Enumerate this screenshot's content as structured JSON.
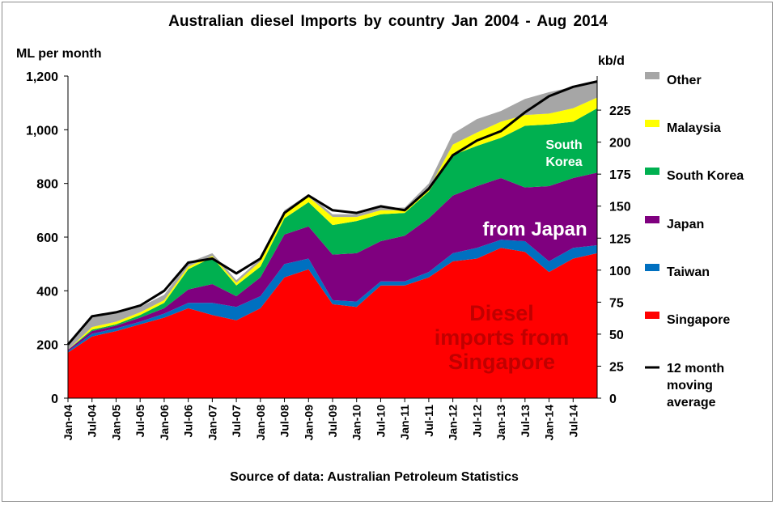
{
  "chart_data": {
    "type": "area",
    "title": "Australian  diesel  Imports  by country  Jan 2004  - Aug 2014",
    "ylabel_left": "ML per month",
    "ylabel_right": "kb/d",
    "source": "Source of data: Australian Petroleum Statistics",
    "ylim_left": [
      0,
      1200
    ],
    "ylim_right": [
      0,
      251.6
    ],
    "yticks_left": [
      "0",
      "200",
      "400",
      "600",
      "800",
      "1,000",
      "1,200"
    ],
    "yticks_right": [
      "0",
      "25",
      "50",
      "75",
      "100",
      "125",
      "150",
      "175",
      "200",
      "225"
    ],
    "xtick_labels": [
      "Jan-04",
      "Jul-04",
      "Jan-05",
      "Jul-05",
      "Jan-06",
      "Jul-06",
      "Jan-07",
      "Jul-07",
      "Jan-08",
      "Jul-08",
      "Jan-09",
      "Jul-09",
      "Jan-10",
      "Jul-10",
      "Jan-11",
      "Jul-11",
      "Jan-12",
      "Jul-12",
      "Jan-13",
      "Jul-13",
      "Jan-14",
      "Jul-14"
    ],
    "x": [
      "Jan-04",
      "Jul-04",
      "Jan-05",
      "Jul-05",
      "Jan-06",
      "Jul-06",
      "Jan-07",
      "Jul-07",
      "Jan-08",
      "Jul-08",
      "Jan-09",
      "Jul-09",
      "Jan-10",
      "Jul-10",
      "Jan-11",
      "Jul-11",
      "Jan-12",
      "Jul-12",
      "Jan-13",
      "Jul-13",
      "Jan-14",
      "Jul-14",
      "Aug-14"
    ],
    "stack_order_bottom_to_top": [
      "Singapore",
      "Taiwan",
      "Japan",
      "South Korea",
      "Malaysia",
      "Other"
    ],
    "series": [
      {
        "name": "Singapore",
        "color": "#ff0000",
        "values": [
          170,
          230,
          250,
          275,
          300,
          335,
          310,
          290,
          335,
          450,
          480,
          350,
          340,
          420,
          420,
          450,
          510,
          520,
          560,
          545,
          470,
          520,
          540
        ]
      },
      {
        "name": "Taiwan",
        "color": "#0070c0",
        "values": [
          5,
          10,
          10,
          10,
          15,
          20,
          45,
          50,
          45,
          50,
          40,
          15,
          20,
          15,
          15,
          20,
          30,
          40,
          30,
          40,
          40,
          40,
          30
        ]
      },
      {
        "name": "Japan",
        "color": "#7f007f",
        "values": [
          5,
          10,
          10,
          15,
          20,
          50,
          70,
          40,
          70,
          110,
          120,
          170,
          180,
          150,
          170,
          200,
          215,
          230,
          230,
          200,
          280,
          260,
          270
        ]
      },
      {
        "name": "South Korea",
        "color": "#00b050",
        "values": [
          0,
          5,
          5,
          10,
          20,
          75,
          100,
          40,
          40,
          60,
          90,
          110,
          120,
          100,
          85,
          100,
          150,
          150,
          150,
          230,
          230,
          210,
          240
        ]
      },
      {
        "name": "Malaysia",
        "color": "#ffff00",
        "values": [
          0,
          10,
          10,
          10,
          10,
          10,
          5,
          10,
          20,
          20,
          20,
          30,
          15,
          15,
          10,
          10,
          40,
          50,
          60,
          40,
          40,
          50,
          40
        ]
      },
      {
        "name": "Other",
        "color": "#a6a6a6",
        "values": [
          20,
          45,
          30,
          20,
          20,
          15,
          10,
          10,
          10,
          10,
          10,
          10,
          10,
          10,
          10,
          20,
          40,
          50,
          40,
          60,
          80,
          80,
          60
        ]
      }
    ],
    "line_series": {
      "name": "12 month moving average",
      "color": "#000000",
      "values": [
        200,
        305,
        320,
        345,
        400,
        505,
        520,
        465,
        520,
        690,
        755,
        700,
        690,
        715,
        700,
        780,
        905,
        960,
        995,
        1065,
        1125,
        1160,
        1180
      ]
    },
    "legend": [
      {
        "label": "Other",
        "color": "#a6a6a6"
      },
      {
        "label": "Malaysia",
        "color": "#ffff00"
      },
      {
        "label": "South Korea",
        "color": "#00b050"
      },
      {
        "label": "Japan",
        "color": "#7f007f"
      },
      {
        "label": "Taiwan",
        "color": "#0070c0"
      },
      {
        "label": "Singapore",
        "color": "#ff0000"
      },
      {
        "label": "12 month moving average",
        "lines": [
          "12 month",
          "moving",
          "average"
        ],
        "color": "#000000"
      }
    ],
    "annotations": [
      {
        "lines": [
          "South",
          "Korea"
        ],
        "color": "#ffffff",
        "series": "South Korea"
      },
      {
        "lines": [
          "from Japan"
        ],
        "color": "#ffffff",
        "series": "Japan"
      },
      {
        "lines": [
          "Diesel",
          "imports from",
          "Singapore"
        ],
        "color": "#c00000",
        "series": "Singapore"
      }
    ],
    "legend_position": "right",
    "grid": false
  }
}
